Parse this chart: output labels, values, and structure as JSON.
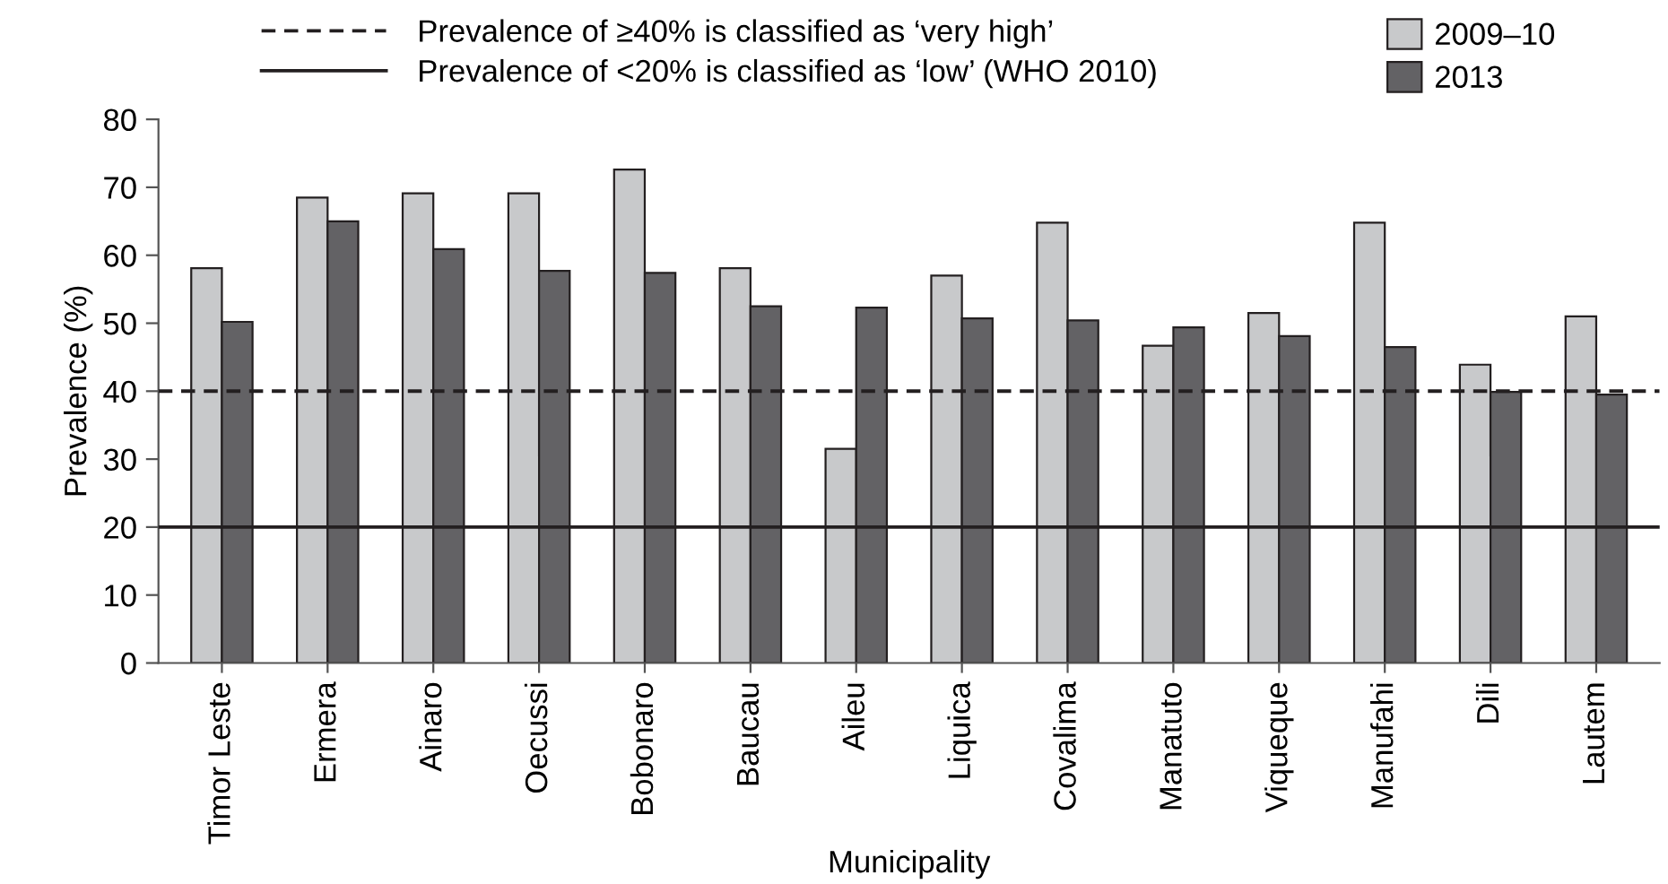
{
  "chart_data": {
    "type": "bar",
    "xlabel": "Municipality",
    "ylabel": "Prevalence (%)",
    "categories": [
      "Timor Leste",
      "Ermera",
      "Ainaro",
      "Oecussi",
      "Bobonaro",
      "Baucau",
      "Aileu",
      "Liquica",
      "Covalima",
      "Manatuto",
      "Viqueque",
      "Manufahi",
      "Dili",
      "Lautem"
    ],
    "series": [
      {
        "name": "2009–10",
        "color": "#c8c9cb",
        "values": [
          58.1,
          68.5,
          69.1,
          69.1,
          72.6,
          58.1,
          31.5,
          57.0,
          64.8,
          46.7,
          51.5,
          64.8,
          43.9,
          51.0
        ]
      },
      {
        "name": "2013",
        "color": "#636265",
        "values": [
          50.2,
          65.0,
          60.9,
          57.7,
          57.4,
          52.5,
          52.3,
          50.7,
          50.4,
          49.4,
          48.1,
          46.5,
          39.9,
          39.5
        ]
      }
    ],
    "ylim": [
      0,
      80
    ],
    "yticks": [
      0,
      10,
      20,
      30,
      40,
      50,
      60,
      70,
      80
    ],
    "ref_lines": [
      {
        "axis": "y",
        "value": 40,
        "label": "Prevalence of ≥40% is classified as ‘very high’",
        "line_style": "dashed",
        "color": "#231f20"
      },
      {
        "axis": "y",
        "value": 20,
        "label": "Prevalence of <20% is classified as ‘low’ (WHO 2010)",
        "line_style": "solid",
        "color": "#231f20"
      }
    ],
    "grid": false,
    "legend": "top"
  }
}
